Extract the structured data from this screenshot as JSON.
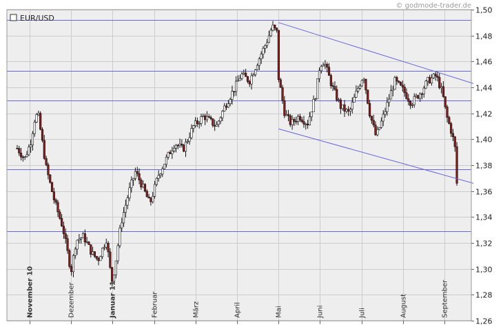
{
  "watermark": "© godmode-trader.de",
  "chart_data": {
    "type": "candlestick",
    "title": "",
    "legend": {
      "label": "EUR/USD",
      "position": "top-left"
    },
    "ylim": [
      1.26,
      1.5
    ],
    "yticks": [
      "1,26",
      "1,28",
      "1,30",
      "1,32",
      "1,34",
      "1,36",
      "1,38",
      "1,40",
      "1,42",
      "1,44",
      "1,46",
      "1,48",
      "1,50"
    ],
    "grid": true,
    "months": [
      {
        "label": "November 10",
        "x": 0,
        "bold": true
      },
      {
        "label": "Dezember",
        "x": 1,
        "bold": false
      },
      {
        "label": "Januar 11",
        "x": 2,
        "bold": true
      },
      {
        "label": "Februar",
        "x": 3,
        "bold": false
      },
      {
        "label": "März",
        "x": 4,
        "bold": false
      },
      {
        "label": "April",
        "x": 5,
        "bold": false
      },
      {
        "label": "Mai",
        "x": 6,
        "bold": false
      },
      {
        "label": "Juni",
        "x": 7,
        "bold": false
      },
      {
        "label": "Juli",
        "x": 8,
        "bold": false
      },
      {
        "label": "August",
        "x": 9,
        "bold": false
      },
      {
        "label": "September",
        "x": 10,
        "bold": false
      }
    ],
    "xlim": [
      -0.3,
      10.7
    ],
    "anchors": [
      [
        -0.3,
        1.393
      ],
      [
        -0.12,
        1.385
      ],
      [
        0.02,
        1.397
      ],
      [
        0.12,
        1.415
      ],
      [
        0.2,
        1.42
      ],
      [
        0.4,
        1.378
      ],
      [
        0.6,
        1.352
      ],
      [
        0.8,
        1.332
      ],
      [
        1.0,
        1.298
      ],
      [
        1.12,
        1.322
      ],
      [
        1.3,
        1.325
      ],
      [
        1.5,
        1.312
      ],
      [
        1.65,
        1.307
      ],
      [
        1.85,
        1.323
      ],
      [
        1.98,
        1.29
      ],
      [
        2.05,
        1.3
      ],
      [
        2.2,
        1.335
      ],
      [
        2.4,
        1.36
      ],
      [
        2.55,
        1.375
      ],
      [
        2.7,
        1.365
      ],
      [
        2.9,
        1.35
      ],
      [
        3.1,
        1.372
      ],
      [
        3.3,
        1.385
      ],
      [
        3.5,
        1.397
      ],
      [
        3.7,
        1.392
      ],
      [
        3.95,
        1.41
      ],
      [
        4.2,
        1.418
      ],
      [
        4.5,
        1.41
      ],
      [
        4.7,
        1.425
      ],
      [
        4.95,
        1.44
      ],
      [
        5.1,
        1.45
      ],
      [
        5.3,
        1.445
      ],
      [
        5.5,
        1.46
      ],
      [
        5.7,
        1.474
      ],
      [
        5.85,
        1.487
      ],
      [
        5.97,
        1.482
      ],
      [
        6.0,
        1.448
      ],
      [
        6.15,
        1.42
      ],
      [
        6.3,
        1.412
      ],
      [
        6.5,
        1.418
      ],
      [
        6.7,
        1.412
      ],
      [
        6.9,
        1.435
      ],
      [
        7.0,
        1.458
      ],
      [
        7.1,
        1.46
      ],
      [
        7.3,
        1.44
      ],
      [
        7.5,
        1.425
      ],
      [
        7.7,
        1.42
      ],
      [
        7.9,
        1.438
      ],
      [
        8.05,
        1.45
      ],
      [
        8.2,
        1.42
      ],
      [
        8.35,
        1.402
      ],
      [
        8.5,
        1.415
      ],
      [
        8.65,
        1.43
      ],
      [
        8.8,
        1.445
      ],
      [
        9.0,
        1.438
      ],
      [
        9.2,
        1.428
      ],
      [
        9.4,
        1.435
      ],
      [
        9.6,
        1.445
      ],
      [
        9.8,
        1.449
      ],
      [
        9.95,
        1.436
      ],
      [
        10.05,
        1.418
      ],
      [
        10.15,
        1.408
      ],
      [
        10.25,
        1.395
      ],
      [
        10.3,
        1.366
      ]
    ],
    "horizontal_levels": [
      1.492,
      1.453,
      1.43,
      1.377,
      1.329
    ],
    "trendlines": [
      {
        "from": [
          6.0,
          1.49
        ],
        "to": [
          10.7,
          1.443
        ]
      },
      {
        "from": [
          6.0,
          1.408
        ],
        "to": [
          10.7,
          1.366
        ]
      }
    ],
    "colors": {
      "up_candle": "#ffffff",
      "down_candle": "#8b1a1a",
      "wick": "#111111",
      "lines": "#6666dd",
      "plot_bg": "#eeeeee",
      "grid": "#cccccc"
    }
  }
}
